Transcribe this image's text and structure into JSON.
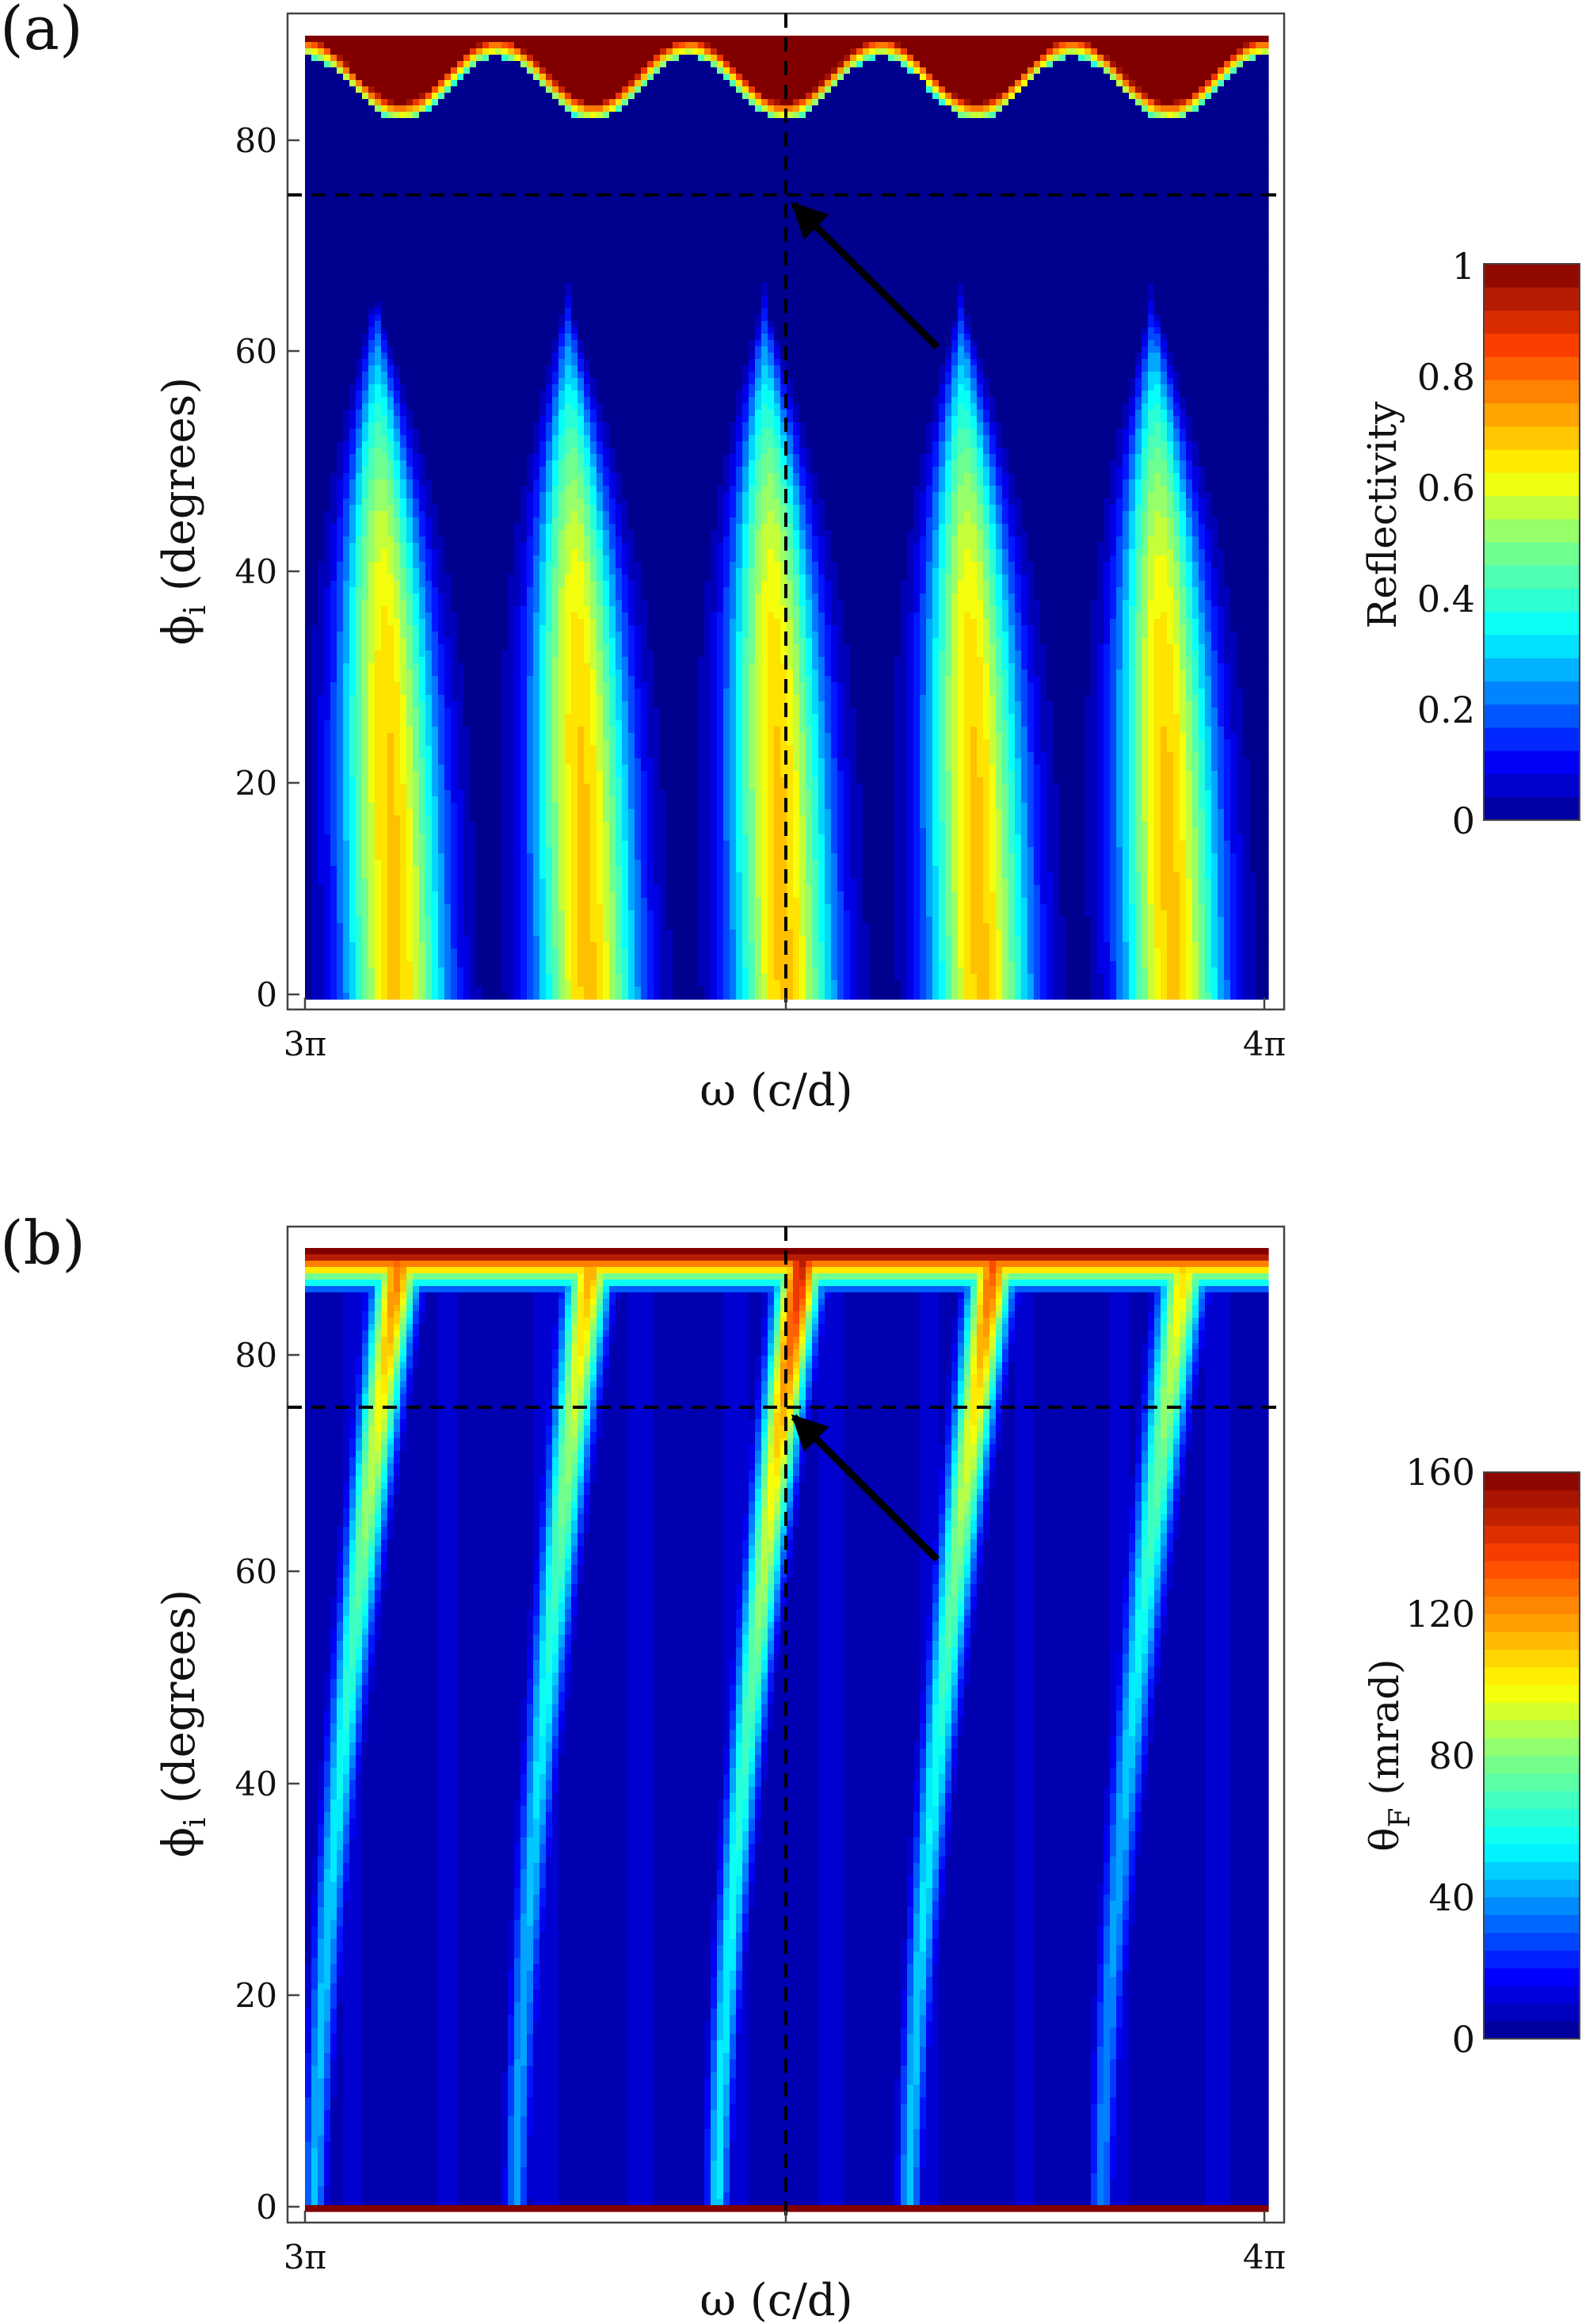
{
  "chart_data": [
    {
      "type": "heatmap",
      "panel_label": "(a)",
      "xlabel": "ω (c/d)",
      "ylabel_main": "ϕ",
      "ylabel_sub": "i",
      "ylabel_rest": " (degrees)",
      "x_range_pi": [
        3,
        4
      ],
      "x_ticks": [
        {
          "value_pi": 3,
          "label": "3π"
        },
        {
          "value_pi": 4,
          "label": "4π"
        }
      ],
      "ylim": [
        0,
        90
      ],
      "y_ticks": [
        0,
        20,
        40,
        60,
        80
      ],
      "crosshair": {
        "x_pi": 3.5,
        "y_deg": 75
      },
      "arrow_target": {
        "x_pi": 3.5,
        "y_deg": 75
      },
      "colorbar": {
        "label": "Reflectivity",
        "label_sub": "",
        "range": [
          0,
          1
        ],
        "ticks": [
          {
            "value": 0,
            "label": "0"
          },
          {
            "value": 0.2,
            "label": "0.2"
          },
          {
            "value": 0.4,
            "label": "0.4"
          },
          {
            "value": 0.6,
            "label": "0.6"
          },
          {
            "value": 0.8,
            "label": "0.8"
          },
          {
            "value": 1,
            "label": "1"
          }
        ]
      },
      "band_centers_pi": [
        3.095,
        3.295,
        3.5,
        3.705,
        3.905
      ],
      "band_peak_value": 0.68
    },
    {
      "type": "heatmap",
      "panel_label": "(b)",
      "xlabel": "ω (c/d)",
      "ylabel_main": "ϕ",
      "ylabel_sub": "i",
      "ylabel_rest": " (degrees)",
      "x_range_pi": [
        3,
        4
      ],
      "x_ticks": [
        {
          "value_pi": 3,
          "label": "3π"
        },
        {
          "value_pi": 4,
          "label": "4π"
        }
      ],
      "ylim": [
        0,
        90
      ],
      "y_ticks": [
        0,
        20,
        40,
        60,
        80
      ],
      "crosshair": {
        "x_pi": 3.5,
        "y_deg": 75
      },
      "arrow_target": {
        "x_pi": 3.5,
        "y_deg": 75
      },
      "colorbar": {
        "label": "θ",
        "label_sub": "F",
        "label_rest": " (mrad)",
        "range": [
          0,
          160
        ],
        "ticks": [
          {
            "value": 0,
            "label": "0"
          },
          {
            "value": 40,
            "label": "40"
          },
          {
            "value": 80,
            "label": "80"
          },
          {
            "value": 120,
            "label": "120"
          },
          {
            "value": 160,
            "label": "160"
          }
        ]
      },
      "ridges": [
        {
          "x0_pi": 3.43,
          "x90_pi": 3.52,
          "peak_mrad": 150
        },
        {
          "x0_pi": 3.01,
          "x90_pi": 3.1,
          "peak_mrad": 130
        },
        {
          "x0_pi": 3.22,
          "x90_pi": 3.3,
          "peak_mrad": 120
        },
        {
          "x0_pi": 3.63,
          "x90_pi": 3.72,
          "peak_mrad": 135
        },
        {
          "x0_pi": 3.83,
          "x90_pi": 3.92,
          "peak_mrad": 110
        }
      ]
    }
  ]
}
